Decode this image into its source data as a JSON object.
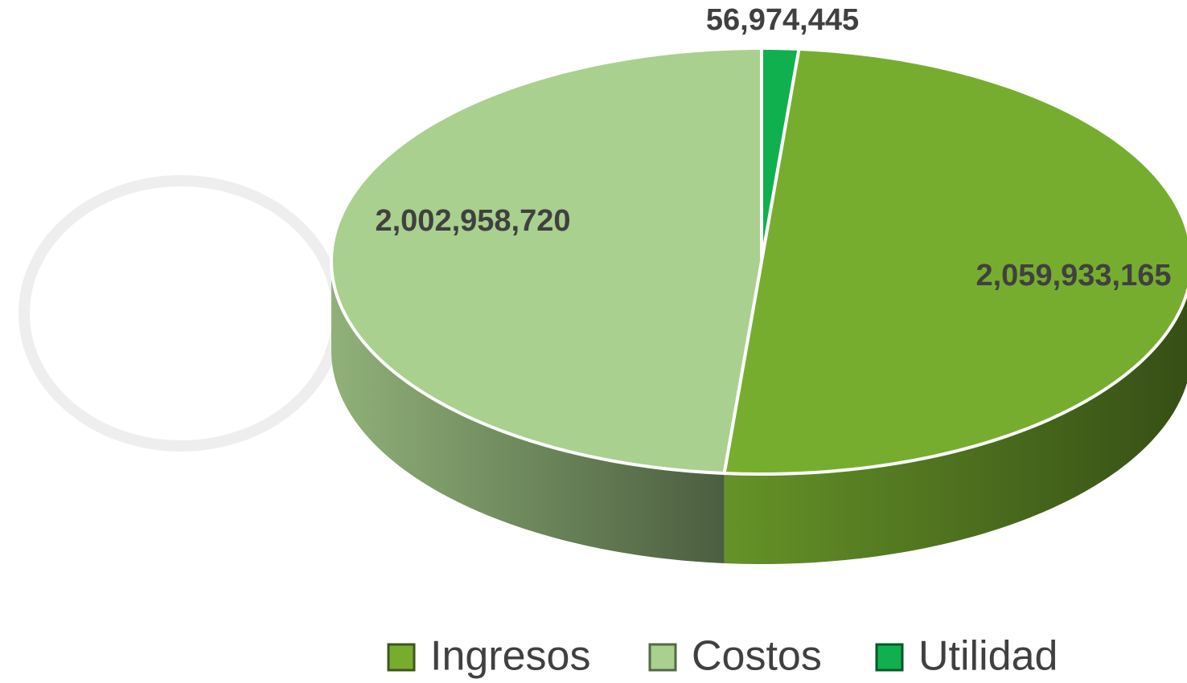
{
  "chart_data": {
    "type": "pie",
    "categories": [
      "Ingresos",
      "Costos",
      "Utilidad"
    ],
    "values": [
      2059933165,
      2002958720,
      56974445
    ],
    "value_labels": [
      "2,059,933,165",
      "2,002,958,720",
      "56,974,445"
    ],
    "colors": [
      "#77ad2f",
      "#a9d08e",
      "#10b04f"
    ],
    "legend": "bottom"
  }
}
